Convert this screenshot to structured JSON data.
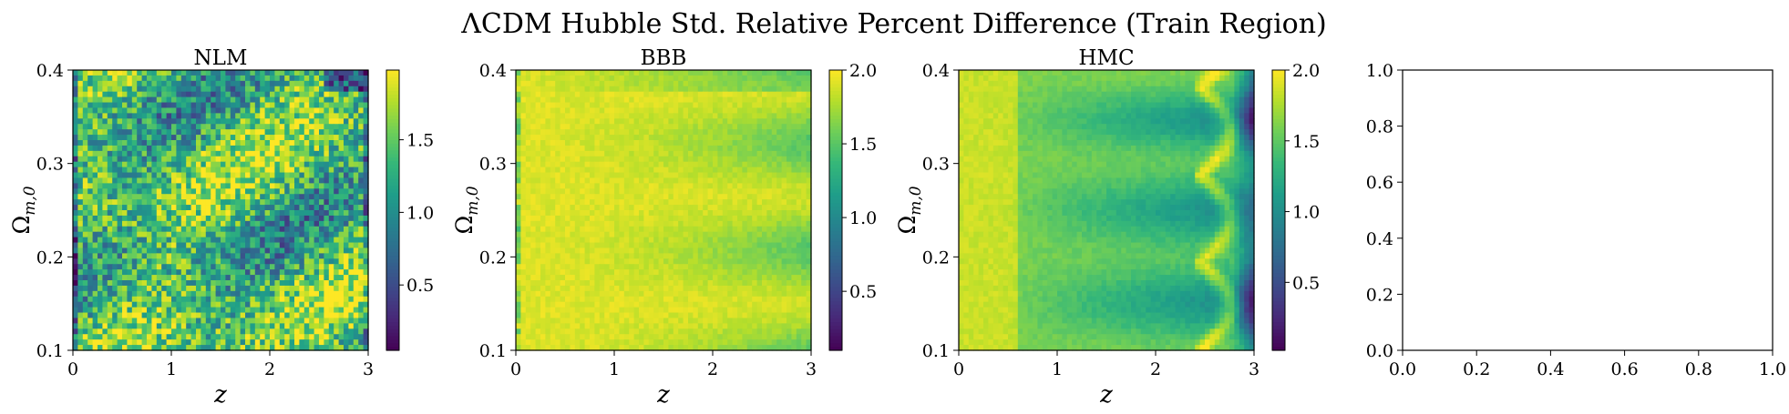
{
  "figure": {
    "title": "ΛCDM Hubble Std. Relative Percent Difference (Train Region)"
  },
  "colors": {
    "viridis": [
      "#440154",
      "#482878",
      "#3e4989",
      "#31688e",
      "#26828e",
      "#1f9e89",
      "#35b779",
      "#6ece58",
      "#b5de2b",
      "#fde725"
    ],
    "axis": "#000000",
    "background": "#ffffff"
  },
  "chart_data": [
    {
      "type": "heatmap",
      "title": "NLM",
      "xlabel": "z",
      "ylabel": "Ω_{m,0}",
      "xlim": [
        0,
        3
      ],
      "ylim": [
        0.1,
        0.4
      ],
      "xticks": [
        "0",
        "1",
        "2",
        "3"
      ],
      "yticks": [
        "0.1",
        "0.2",
        "0.3",
        "0.4"
      ],
      "colorbar": {
        "range": [
          0.05,
          1.98
        ],
        "ticks": [
          "0.5",
          "1.0",
          "1.5"
        ],
        "tick_values": [
          0.5,
          1.0,
          1.5
        ]
      },
      "pattern": "noisy"
    },
    {
      "type": "heatmap",
      "title": "BBB",
      "xlabel": "z",
      "ylabel": "Ω_{m,0}",
      "xlim": [
        0,
        3
      ],
      "ylim": [
        0.1,
        0.4
      ],
      "xticks": [
        "0",
        "1",
        "2",
        "3"
      ],
      "yticks": [
        "0.1",
        "0.2",
        "0.3",
        "0.4"
      ],
      "colorbar": {
        "range": [
          0.1,
          2.0
        ],
        "ticks": [
          "0.5",
          "1.0",
          "1.5",
          "2.0"
        ],
        "tick_values": [
          0.5,
          1.0,
          1.5,
          2.0
        ]
      },
      "pattern": "bands"
    },
    {
      "type": "heatmap",
      "title": "HMC",
      "xlabel": "z",
      "ylabel": "Ω_{m,0}",
      "xlim": [
        0,
        3
      ],
      "ylim": [
        0.1,
        0.4
      ],
      "xticks": [
        "0",
        "1",
        "2",
        "3"
      ],
      "yticks": [
        "0.1",
        "0.2",
        "0.3",
        "0.4"
      ],
      "colorbar": {
        "range": [
          0.02,
          2.0
        ],
        "ticks": [
          "0.5",
          "1.0",
          "1.5",
          "2.0"
        ],
        "tick_values": [
          0.5,
          1.0,
          1.5,
          2.0
        ]
      },
      "pattern": "arcs"
    },
    {
      "type": "empty",
      "title": "",
      "xlim": [
        0,
        1
      ],
      "ylim": [
        0,
        1
      ],
      "xticks": [
        "0.0",
        "0.2",
        "0.4",
        "0.6",
        "0.8",
        "1.0"
      ],
      "yticks": [
        "0.0",
        "0.2",
        "0.4",
        "0.6",
        "0.8",
        "1.0"
      ]
    }
  ]
}
